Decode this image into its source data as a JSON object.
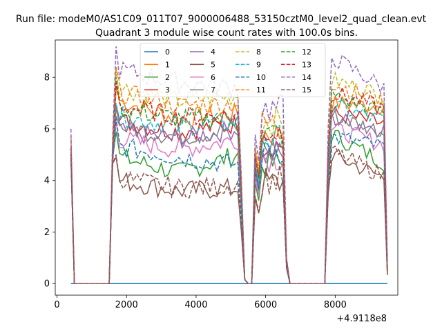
{
  "figure": {
    "suptitle": "Run file: modeM0/AS1C09_011T07_9000006488_53150cztM0_level2_quad_clean.evt"
  },
  "chart_data": {
    "type": "line",
    "title": "Quadrant 3 module wise count rates with 100.0s bins.",
    "xlabel": "",
    "ylabel": "",
    "x_offset_label": "+4.9118e8",
    "xlim": [
      -50,
      9800
    ],
    "ylim": [
      -0.45,
      9.45
    ],
    "x_ticks": [
      0,
      2000,
      4000,
      6000,
      8000
    ],
    "y_ticks": [
      0,
      2,
      4,
      6,
      8
    ],
    "grid": false,
    "legend": {
      "placement": "top-center",
      "columns": 4
    },
    "x_bins": [
      400,
      500,
      1500,
      1600,
      1700,
      5200,
      5300,
      5400,
      5500,
      5700,
      5800,
      5900,
      6400,
      6500,
      6600,
      6700,
      7700,
      7800,
      7900,
      9300,
      9400,
      9500
    ],
    "series_profile_note_free": true,
    "series": [
      {
        "name": "0",
        "color": "#1f77b4",
        "style": "solid",
        "values": [
          0,
          0,
          0,
          0,
          0,
          0,
          0,
          0,
          0,
          0,
          0,
          0,
          0,
          0,
          0,
          0,
          0,
          0,
          0,
          0,
          0,
          0
        ]
      },
      {
        "name": "1",
        "color": "#ff7f0e",
        "style": "solid",
        "base": [
          5.2,
          7.6,
          7.1,
          6.4,
          6.6,
          5.8,
          7.0,
          6.9
        ]
      },
      {
        "name": "2",
        "color": "#2ca02c",
        "style": "solid",
        "base": [
          5.1,
          5.9,
          4.9,
          4.3,
          5.0,
          4.6,
          5.8,
          4.7
        ]
      },
      {
        "name": "3",
        "color": "#d62728",
        "style": "solid",
        "base": [
          5.0,
          6.9,
          6.3,
          5.9,
          6.2,
          5.4,
          6.6,
          6.2
        ]
      },
      {
        "name": "4",
        "color": "#9467bd",
        "style": "solid",
        "base": [
          5.0,
          6.5,
          5.9,
          5.6,
          6.0,
          5.0,
          6.4,
          6.0
        ]
      },
      {
        "name": "5",
        "color": "#8c564b",
        "style": "solid",
        "base": [
          4.9,
          4.9,
          4.0,
          3.6,
          3.7,
          3.9,
          5.0,
          4.1
        ]
      },
      {
        "name": "6",
        "color": "#e377c2",
        "style": "solid",
        "base": [
          5.1,
          6.3,
          5.6,
          5.2,
          5.6,
          4.9,
          6.0,
          5.4
        ]
      },
      {
        "name": "7",
        "color": "#7f7f7f",
        "style": "solid",
        "base": [
          5.2,
          6.8,
          6.1,
          5.7,
          6.0,
          5.3,
          6.5,
          5.9
        ]
      },
      {
        "name": "8",
        "color": "#bcbd22",
        "style": "dashed",
        "base": [
          5.6,
          8.3,
          7.6,
          7.1,
          7.3,
          6.3,
          7.9,
          7.3
        ]
      },
      {
        "name": "9",
        "color": "#17becf",
        "style": "dashed",
        "base": [
          5.3,
          7.0,
          6.5,
          6.1,
          6.3,
          5.6,
          6.9,
          6.3
        ]
      },
      {
        "name": "10",
        "color": "#1f77b4",
        "style": "dashed",
        "base": [
          5.0,
          6.4,
          5.3,
          4.9,
          4.6,
          5.2,
          5.7,
          5.3
        ]
      },
      {
        "name": "11",
        "color": "#ff7f0e",
        "style": "dashed",
        "base": [
          5.7,
          8.4,
          7.4,
          6.9,
          7.0,
          6.2,
          7.8,
          7.0
        ]
      },
      {
        "name": "12",
        "color": "#2ca02c",
        "style": "dashed",
        "base": [
          5.3,
          8.0,
          6.8,
          6.4,
          6.4,
          5.8,
          7.3,
          6.6
        ]
      },
      {
        "name": "13",
        "color": "#d62728",
        "style": "dashed",
        "base": [
          5.3,
          7.8,
          6.9,
          6.5,
          6.5,
          5.9,
          7.4,
          6.8
        ]
      },
      {
        "name": "14",
        "color": "#9467bd",
        "style": "dashed",
        "base": [
          6.0,
          9.2,
          8.3,
          7.8,
          7.6,
          6.8,
          8.8,
          7.6
        ]
      },
      {
        "name": "15",
        "color": "#8c564b",
        "style": "dashed",
        "base": [
          4.9,
          5.0,
          4.1,
          3.7,
          3.8,
          4.0,
          5.1,
          4.2
        ]
      }
    ]
  }
}
